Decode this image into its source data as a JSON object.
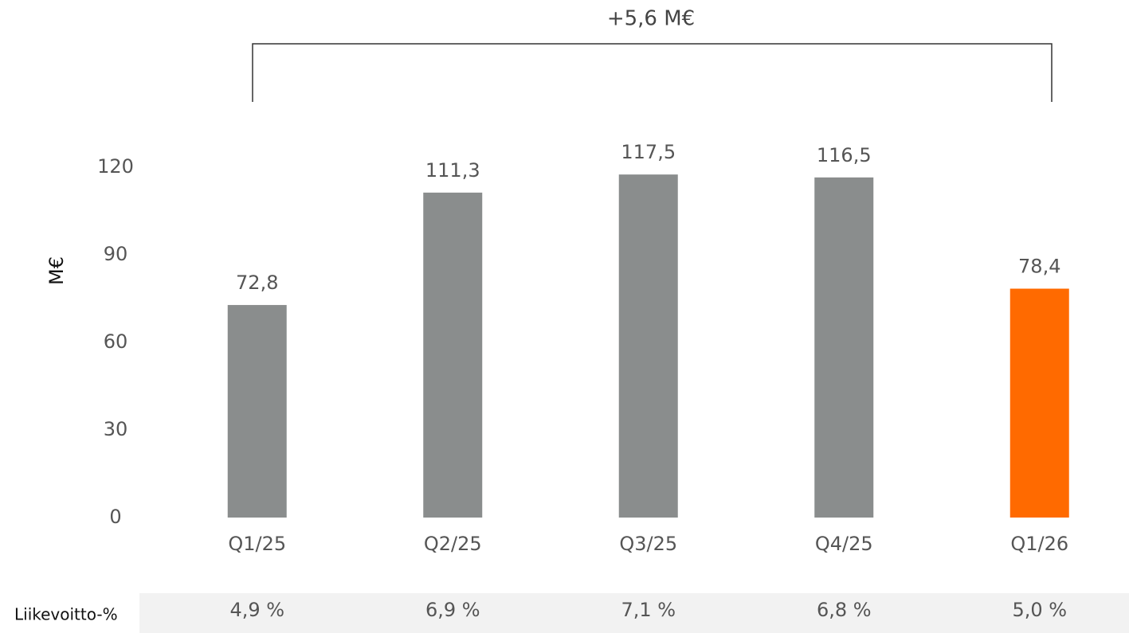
{
  "chart_data": {
    "type": "bar",
    "ylabel": "M€",
    "annotation": "+5,6 M€",
    "categories": [
      "Q1/25",
      "Q2/25",
      "Q3/25",
      "Q4/25",
      "Q1/26"
    ],
    "values": [
      72.8,
      111.3,
      117.5,
      116.5,
      78.4
    ],
    "value_labels": [
      "72,8",
      "111,3",
      "117,5",
      "116,5",
      "78,4"
    ],
    "colors": [
      "#8a8d8d",
      "#8a8d8d",
      "#8a8d8d",
      "#8a8d8d",
      "#ff6a00"
    ],
    "ylim": [
      0,
      120
    ],
    "yticks": [
      0,
      30,
      60,
      90,
      120
    ],
    "grid": false,
    "row_label": "Liikevoitto-%",
    "row_values": [
      "4,9 %",
      "6,9 %",
      "7,1 %",
      "6,8 %",
      "5,0 %"
    ]
  }
}
